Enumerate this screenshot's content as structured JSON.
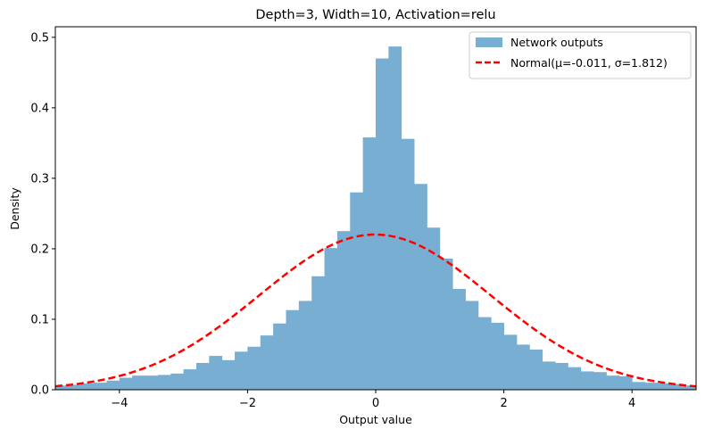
{
  "chart_data": {
    "type": "bar",
    "title": "Depth=3, Width=10, Activation=relu",
    "xlabel": "Output value",
    "ylabel": "Density",
    "xlim": [
      -5,
      5
    ],
    "ylim": [
      0,
      0.515
    ],
    "x_ticks": [
      -4,
      -2,
      0,
      2,
      4
    ],
    "x_tick_labels": [
      "−4",
      "−2",
      "0",
      "2",
      "4"
    ],
    "y_ticks": [
      0.0,
      0.1,
      0.2,
      0.3,
      0.4,
      0.5
    ],
    "y_tick_labels": [
      "0.0",
      "0.1",
      "0.2",
      "0.3",
      "0.4",
      "0.5"
    ],
    "grid": false,
    "legend_position": "top-right",
    "colors": {
      "hist": "#77aed2",
      "normal": "#ff0000"
    },
    "histogram": {
      "name": "Network outputs",
      "bin_width": 0.2,
      "bins": [
        {
          "x0": -5.0,
          "x1": -4.8,
          "density": 0.006
        },
        {
          "x0": -4.8,
          "x1": -4.6,
          "density": 0.007
        },
        {
          "x0": -4.6,
          "x1": -4.4,
          "density": 0.009
        },
        {
          "x0": -4.4,
          "x1": -4.2,
          "density": 0.01
        },
        {
          "x0": -4.2,
          "x1": -4.0,
          "density": 0.013
        },
        {
          "x0": -4.0,
          "x1": -3.8,
          "density": 0.017
        },
        {
          "x0": -3.8,
          "x1": -3.6,
          "density": 0.02
        },
        {
          "x0": -3.6,
          "x1": -3.4,
          "density": 0.02
        },
        {
          "x0": -3.4,
          "x1": -3.2,
          "density": 0.021
        },
        {
          "x0": -3.2,
          "x1": -3.0,
          "density": 0.023
        },
        {
          "x0": -3.0,
          "x1": -2.8,
          "density": 0.029
        },
        {
          "x0": -2.8,
          "x1": -2.6,
          "density": 0.038
        },
        {
          "x0": -2.6,
          "x1": -2.4,
          "density": 0.048
        },
        {
          "x0": -2.4,
          "x1": -2.2,
          "density": 0.042
        },
        {
          "x0": -2.2,
          "x1": -2.0,
          "density": 0.054
        },
        {
          "x0": -2.0,
          "x1": -1.8,
          "density": 0.061
        },
        {
          "x0": -1.8,
          "x1": -1.6,
          "density": 0.077
        },
        {
          "x0": -1.6,
          "x1": -1.4,
          "density": 0.094
        },
        {
          "x0": -1.4,
          "x1": -1.2,
          "density": 0.113
        },
        {
          "x0": -1.2,
          "x1": -1.0,
          "density": 0.126
        },
        {
          "x0": -1.0,
          "x1": -0.8,
          "density": 0.161
        },
        {
          "x0": -0.8,
          "x1": -0.6,
          "density": 0.201
        },
        {
          "x0": -0.6,
          "x1": -0.4,
          "density": 0.225
        },
        {
          "x0": -0.4,
          "x1": -0.2,
          "density": 0.28
        },
        {
          "x0": -0.2,
          "x1": 0.0,
          "density": 0.358
        },
        {
          "x0": 0.0,
          "x1": 0.2,
          "density": 0.47
        },
        {
          "x0": 0.2,
          "x1": 0.4,
          "density": 0.487
        },
        {
          "x0": 0.4,
          "x1": 0.6,
          "density": 0.356
        },
        {
          "x0": 0.6,
          "x1": 0.8,
          "density": 0.292
        },
        {
          "x0": 0.8,
          "x1": 1.0,
          "density": 0.23
        },
        {
          "x0": 1.0,
          "x1": 1.2,
          "density": 0.186
        },
        {
          "x0": 1.2,
          "x1": 1.4,
          "density": 0.143
        },
        {
          "x0": 1.4,
          "x1": 1.6,
          "density": 0.126
        },
        {
          "x0": 1.6,
          "x1": 1.8,
          "density": 0.103
        },
        {
          "x0": 1.8,
          "x1": 2.0,
          "density": 0.095
        },
        {
          "x0": 2.0,
          "x1": 2.2,
          "density": 0.078
        },
        {
          "x0": 2.2,
          "x1": 2.4,
          "density": 0.064
        },
        {
          "x0": 2.4,
          "x1": 2.6,
          "density": 0.057
        },
        {
          "x0": 2.6,
          "x1": 2.8,
          "density": 0.04
        },
        {
          "x0": 2.8,
          "x1": 3.0,
          "density": 0.038
        },
        {
          "x0": 3.0,
          "x1": 3.2,
          "density": 0.032
        },
        {
          "x0": 3.2,
          "x1": 3.4,
          "density": 0.026
        },
        {
          "x0": 3.4,
          "x1": 3.6,
          "density": 0.025
        },
        {
          "x0": 3.6,
          "x1": 3.8,
          "density": 0.02
        },
        {
          "x0": 3.8,
          "x1": 4.0,
          "density": 0.019
        },
        {
          "x0": 4.0,
          "x1": 4.2,
          "density": 0.011
        },
        {
          "x0": 4.2,
          "x1": 4.4,
          "density": 0.01
        },
        {
          "x0": 4.4,
          "x1": 4.6,
          "density": 0.009
        },
        {
          "x0": 4.6,
          "x1": 4.8,
          "density": 0.008
        },
        {
          "x0": 4.8,
          "x1": 5.0,
          "density": 0.006
        }
      ]
    },
    "normal_fit": {
      "name": "Normal(μ=-0.011, σ=1.812)",
      "mu": -0.011,
      "sigma": 1.812,
      "style": "dashed"
    }
  }
}
